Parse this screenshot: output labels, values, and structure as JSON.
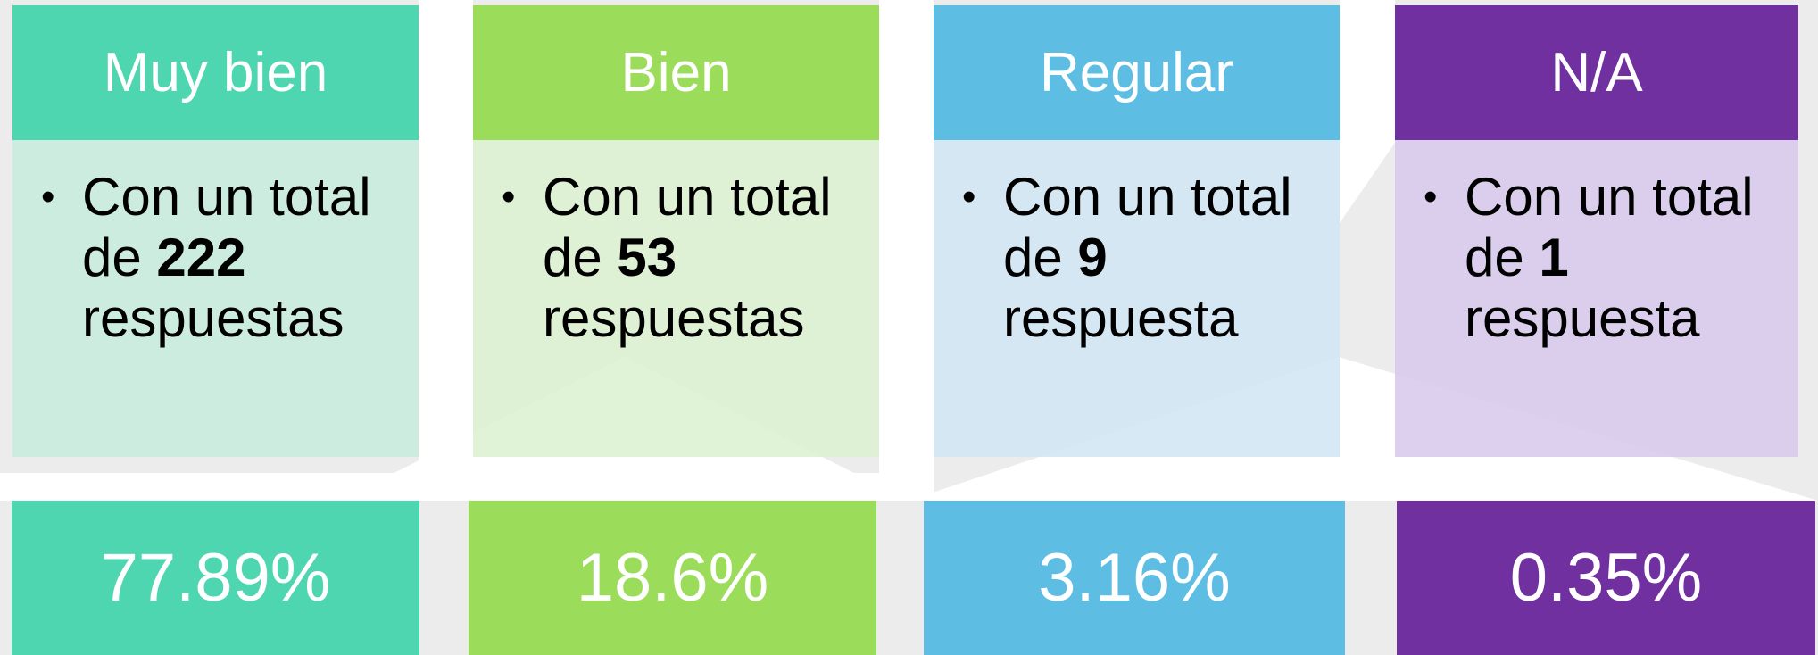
{
  "cards": [
    {
      "title": "Muy bien",
      "text_before": "Con un total de",
      "count": 222,
      "text_after": "respuestas",
      "percent": "77.89%"
    },
    {
      "title": "Bien",
      "text_before": "Con un total de",
      "count": 53,
      "text_after": "respuestas",
      "percent": "18.6%"
    },
    {
      "title": "Regular",
      "text_before": "Con un total de",
      "count": 9,
      "text_after": "respuesta",
      "percent": "3.16%"
    },
    {
      "title": "N/A",
      "text_before": "Con un total de",
      "count": 1,
      "text_after": "respuesta",
      "percent": "0.35%"
    }
  ]
}
